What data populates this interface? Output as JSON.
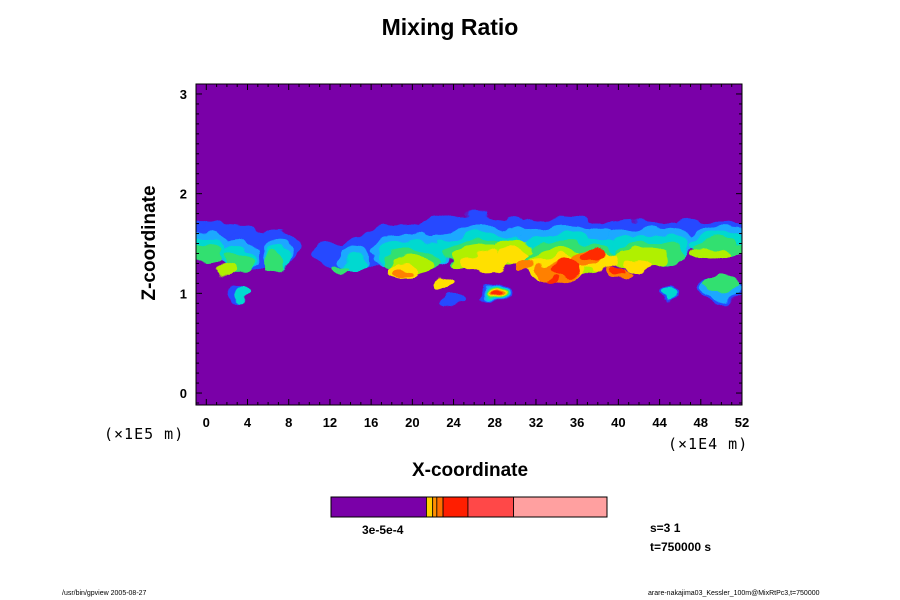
{
  "chart_data": {
    "type": "heatmap",
    "title": "Mixing Ratio",
    "xlabel": "X-coordinate",
    "ylabel": "Z-coordinate",
    "x_ticks": [
      "0",
      "4",
      "8",
      "12",
      "16",
      "20",
      "24",
      "28",
      "32",
      "36",
      "40",
      "44",
      "48",
      "52"
    ],
    "y_ticks": [
      "0",
      "1",
      "2",
      "3"
    ],
    "xlim": [
      -1,
      52
    ],
    "ylim": [
      -0.12,
      3.1
    ],
    "x_scale_note": "(×1E4 m)",
    "y_scale_note": "(×1E5 m)",
    "background_color": "#7a00a8",
    "colorbar": {
      "label": "3e-5e-4",
      "colors": [
        "#7a00a8",
        "#ffd000",
        "#ff9000",
        "#ff7000",
        "#ff1e00",
        "#ff4848",
        "#ffa0a0"
      ]
    },
    "field_level_colors": [
      "#2848ff",
      "#1aa8ff",
      "#00d9d0",
      "#30e070",
      "#b0f000",
      "#ffe000",
      "#ff8000",
      "#ff2a00"
    ]
  },
  "info": {
    "s_label": "s=3 1",
    "t_label": "t=750000 s"
  },
  "footer": {
    "left": "/usr/bin/gpview 2005-08-27",
    "right": "arare-nakajima03_Kessler_100m@MixRtPc3,t=750000"
  }
}
